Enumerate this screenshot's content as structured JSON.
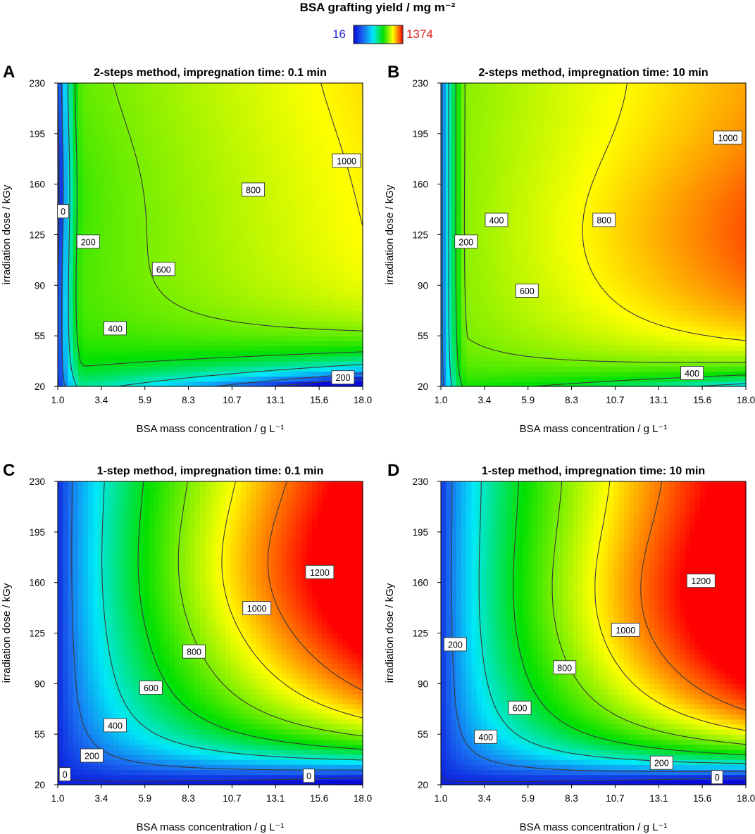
{
  "figure": {
    "colorbar": {
      "title": "BSA grafting yield / mg m⁻²",
      "min_label": "16",
      "max_label": "1374",
      "min": 16,
      "max": 1374,
      "min_color": "#2a2ad0",
      "max_color": "#e02020",
      "stops": [
        "#0a0ad8",
        "#1a6cf0",
        "#00e8f8",
        "#00e000",
        "#ffff00",
        "#ff0000"
      ]
    }
  },
  "chart_data": [
    {
      "type": "heatmap",
      "panel": "A",
      "title": "2-steps method, impregnation time: 0.1 min",
      "xlabel": "BSA mass concentration / g L⁻¹",
      "ylabel": "irradiation dose / kGy",
      "xlim": [
        1.0,
        18.0
      ],
      "ylim": [
        20,
        230
      ],
      "x_ticks": [
        "1.0",
        "3.4",
        "5.9",
        "8.3",
        "10.7",
        "13.1",
        "15.6",
        "18.0"
      ],
      "y_ticks": [
        "20",
        "55",
        "90",
        "125",
        "160",
        "195",
        "230"
      ],
      "contour_levels": [
        0,
        200,
        400,
        600,
        800,
        1000
      ],
      "contour_labels": [
        {
          "text": "0",
          "x": 1.3,
          "y": 141
        },
        {
          "text": "200",
          "x": 2.7,
          "y": 120
        },
        {
          "text": "400",
          "x": 4.2,
          "y": 60
        },
        {
          "text": "600",
          "x": 6.9,
          "y": 101
        },
        {
          "text": "800",
          "x": 11.9,
          "y": 156
        },
        {
          "text": "1000",
          "x": 17.1,
          "y": 176
        },
        {
          "text": "200",
          "x": 16.9,
          "y": 26
        }
      ]
    },
    {
      "type": "heatmap",
      "panel": "B",
      "title": "2-steps method, impregnation time: 10 min",
      "xlabel": "BSA mass concentration / g L⁻¹",
      "ylabel": "irradiation dose / kGy",
      "xlim": [
        1.0,
        18.0
      ],
      "ylim": [
        20,
        230
      ],
      "x_ticks": [
        "1.0",
        "3.4",
        "5.9",
        "8.3",
        "10.7",
        "13.1",
        "15.6",
        "18.0"
      ],
      "y_ticks": [
        "20",
        "55",
        "90",
        "125",
        "160",
        "195",
        "230"
      ],
      "contour_levels": [
        200,
        400,
        600,
        800,
        1000
      ],
      "contour_labels": [
        {
          "text": "200",
          "x": 2.4,
          "y": 120
        },
        {
          "text": "400",
          "x": 4.1,
          "y": 135
        },
        {
          "text": "600",
          "x": 5.8,
          "y": 86
        },
        {
          "text": "800",
          "x": 10.1,
          "y": 135
        },
        {
          "text": "1000",
          "x": 17.0,
          "y": 192
        },
        {
          "text": "400",
          "x": 15.0,
          "y": 29
        }
      ]
    },
    {
      "type": "heatmap",
      "panel": "C",
      "title": "1-step method, impregnation time: 0.1 min",
      "xlabel": "BSA mass concentration / g L⁻¹",
      "ylabel": "irradiation dose / kGy",
      "xlim": [
        1.0,
        18.0
      ],
      "ylim": [
        20,
        230
      ],
      "x_ticks": [
        "1.0",
        "3.4",
        "5.9",
        "8.3",
        "10.7",
        "13.1",
        "15.6",
        "18.0"
      ],
      "y_ticks": [
        "20",
        "55",
        "90",
        "125",
        "160",
        "195",
        "230"
      ],
      "contour_levels": [
        0,
        200,
        400,
        600,
        800,
        1000,
        1200
      ],
      "contour_labels": [
        {
          "text": "0",
          "x": 1.4,
          "y": 27
        },
        {
          "text": "200",
          "x": 2.9,
          "y": 40
        },
        {
          "text": "400",
          "x": 4.2,
          "y": 61
        },
        {
          "text": "600",
          "x": 6.2,
          "y": 87
        },
        {
          "text": "800",
          "x": 8.6,
          "y": 112
        },
        {
          "text": "1000",
          "x": 12.1,
          "y": 142
        },
        {
          "text": "1200",
          "x": 15.6,
          "y": 167
        },
        {
          "text": "0",
          "x": 15.0,
          "y": 26
        }
      ]
    },
    {
      "type": "heatmap",
      "panel": "D",
      "title": "1-step method, impregnation time: 10 min",
      "xlabel": "BSA mass concentration / g L⁻¹",
      "ylabel": "irradiation dose / kGy",
      "xlim": [
        1.0,
        18.0
      ],
      "ylim": [
        20,
        230
      ],
      "x_ticks": [
        "1.0",
        "3.4",
        "5.9",
        "8.3",
        "10.7",
        "13.1",
        "15.6",
        "18.0"
      ],
      "y_ticks": [
        "20",
        "55",
        "90",
        "125",
        "160",
        "195",
        "230"
      ],
      "contour_levels": [
        0,
        200,
        400,
        600,
        800,
        1000,
        1200
      ],
      "contour_labels": [
        {
          "text": "200",
          "x": 1.8,
          "y": 117
        },
        {
          "text": "400",
          "x": 3.5,
          "y": 53
        },
        {
          "text": "600",
          "x": 5.4,
          "y": 73
        },
        {
          "text": "800",
          "x": 7.9,
          "y": 101
        },
        {
          "text": "1000",
          "x": 11.3,
          "y": 127
        },
        {
          "text": "1200",
          "x": 15.5,
          "y": 161
        },
        {
          "text": "200",
          "x": 13.3,
          "y": 35
        },
        {
          "text": "0",
          "x": 16.4,
          "y": 25
        }
      ]
    }
  ]
}
